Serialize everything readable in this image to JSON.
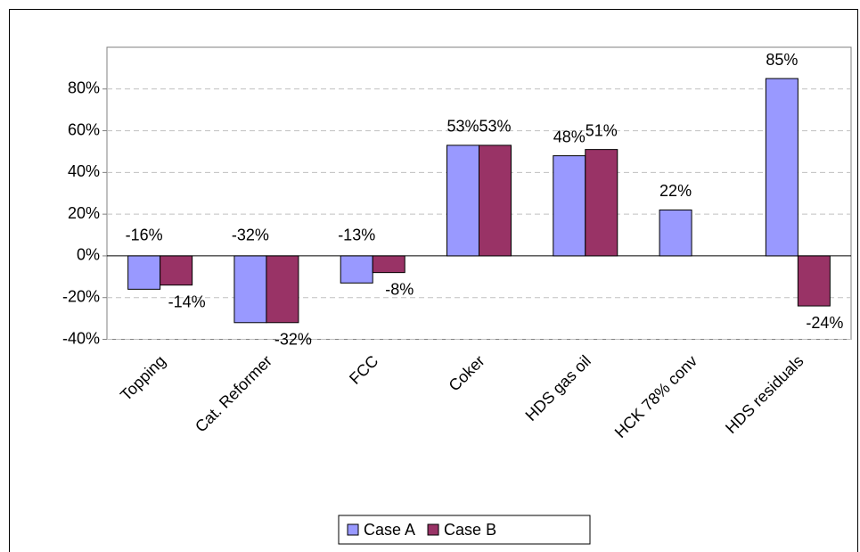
{
  "chart_data": {
    "type": "bar",
    "categories": [
      "Topping",
      "Cat. Reformer",
      "FCC",
      "Coker",
      "HDS gas oil",
      "HCK 78% conv",
      "HDS residuals"
    ],
    "series": [
      {
        "name": "Case A",
        "color": "#9999ff",
        "values": [
          -16,
          -32,
          -13,
          53,
          48,
          22,
          85
        ],
        "value_labels": [
          "-16%",
          "-32%",
          "-13%",
          "53%",
          "48%",
          "22%",
          "85%"
        ]
      },
      {
        "name": "Case B",
        "color": "#993366",
        "values": [
          -14,
          -32,
          -8,
          53,
          51,
          null,
          -24
        ],
        "value_labels": [
          "-14%",
          "-32%",
          "-8%",
          "53%",
          "51%",
          null,
          "-24%"
        ]
      }
    ],
    "ylim": [
      -40,
      100
    ],
    "yticks": [
      {
        "value": -40,
        "label": "-40%"
      },
      {
        "value": -20,
        "label": "-20%"
      },
      {
        "value": 0,
        "label": "0%"
      },
      {
        "value": 20,
        "label": "20%"
      },
      {
        "value": 40,
        "label": "40%"
      },
      {
        "value": 60,
        "label": "60%"
      },
      {
        "value": 80,
        "label": "80%"
      }
    ],
    "grid": true,
    "legend": "bottom"
  }
}
